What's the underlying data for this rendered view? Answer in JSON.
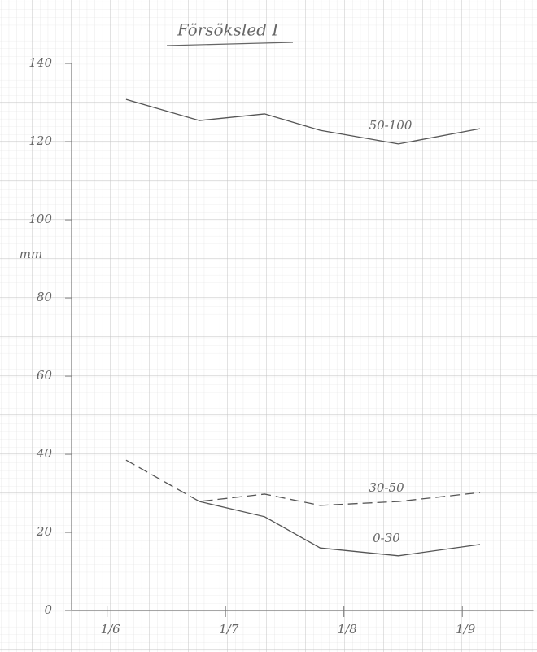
{
  "chart_data": {
    "type": "line",
    "title": "Försöksled I",
    "ylabel": "mm",
    "x": [
      6.16,
      6.78,
      7.33,
      7.8,
      8.46,
      9.15
    ],
    "xlim": [
      5.7,
      9.6
    ],
    "xticks": [
      {
        "value": 6,
        "label": "1/6"
      },
      {
        "value": 7,
        "label": "1/7"
      },
      {
        "value": 8,
        "label": "1/8"
      },
      {
        "value": 9,
        "label": "1/9"
      }
    ],
    "ylim": [
      0,
      140
    ],
    "yticks": [
      0,
      20,
      40,
      60,
      80,
      100,
      120,
      140
    ],
    "series": [
      {
        "name": "50-100",
        "color": "#555555",
        "dash": false,
        "values": [
          130.8,
          125.4,
          127.1,
          122.9,
          119.4,
          123.3
        ]
      },
      {
        "name": "30-50",
        "color": "#555555",
        "dash": true,
        "values": [
          38.5,
          27.9,
          29.8,
          26.9,
          27.9,
          30.2
        ]
      },
      {
        "name": "0-30",
        "color": "#555555",
        "dash": false,
        "values": [
          null,
          27.9,
          24.0,
          16.0,
          14.0,
          16.9
        ]
      }
    ]
  }
}
